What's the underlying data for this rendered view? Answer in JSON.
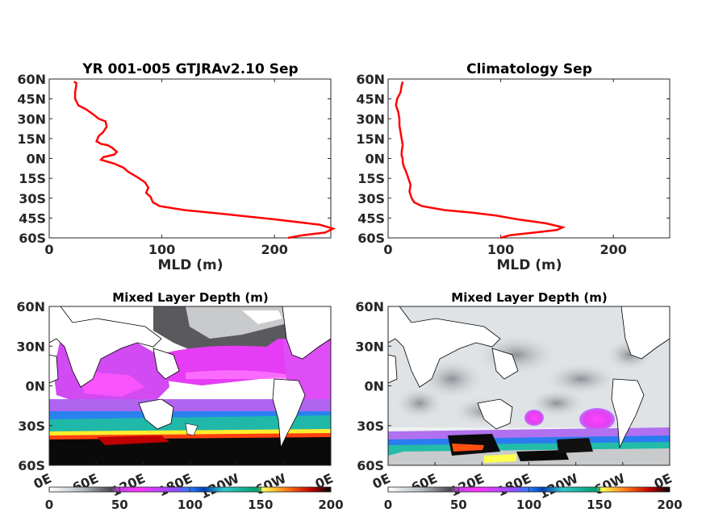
{
  "chart_data": [
    {
      "type": "line",
      "title": "YR 001-005 GTJRAv2.10 Sep",
      "xlabel": "MLD (m)",
      "ylabel": "",
      "xlim": [
        0,
        250
      ],
      "ylim": [
        -60,
        60
      ],
      "xticks": [
        "0",
        "100",
        "200"
      ],
      "xtick_values": [
        0,
        100,
        200
      ],
      "yticks": [
        "60N",
        "45N",
        "30N",
        "15N",
        "0N",
        "15S",
        "30S",
        "45S",
        "60S"
      ],
      "ytick_values": [
        60,
        45,
        30,
        15,
        0,
        -15,
        -30,
        -45,
        -60
      ],
      "series": [
        {
          "color": "#ff0000",
          "x": [
            22,
            24,
            24,
            23,
            23,
            26,
            33,
            38,
            44,
            50,
            51,
            48,
            44,
            42,
            46,
            52,
            56,
            60,
            58,
            48,
            46,
            50,
            58,
            66,
            70,
            78,
            85,
            88,
            86,
            90,
            92,
            98,
            120,
            155,
            200,
            240,
            252,
            245,
            225,
            212
          ],
          "y": [
            58,
            57,
            55,
            50,
            45,
            40,
            37,
            34,
            30,
            28,
            24,
            20,
            17,
            13,
            11,
            10,
            8,
            5,
            3,
            1,
            -1,
            -2,
            -4,
            -7,
            -10,
            -14,
            -18,
            -22,
            -26,
            -29,
            -33,
            -36,
            -39,
            -42,
            -46,
            -50,
            -53,
            -56,
            -58,
            -60
          ]
        }
      ]
    },
    {
      "type": "line",
      "title": "Climatology Sep",
      "xlabel": "MLD (m)",
      "ylabel": "",
      "xlim": [
        0,
        250
      ],
      "ylim": [
        -60,
        60
      ],
      "xticks": [
        "0",
        "100",
        "200"
      ],
      "xtick_values": [
        0,
        100,
        200
      ],
      "yticks": [
        "60N",
        "45N",
        "30N",
        "15N",
        "0N",
        "15S",
        "30S",
        "45S",
        "60S"
      ],
      "ytick_values": [
        60,
        45,
        30,
        15,
        0,
        -15,
        -30,
        -45,
        -60
      ],
      "series": [
        {
          "color": "#ff0000",
          "x": [
            13,
            12,
            11,
            8,
            7,
            9,
            10,
            10,
            11,
            12,
            13,
            12,
            12,
            13,
            13,
            14,
            16,
            18,
            20,
            19,
            21,
            23,
            30,
            50,
            75,
            95,
            115,
            140,
            155,
            150,
            130,
            108,
            100
          ],
          "y": [
            58,
            55,
            50,
            45,
            40,
            35,
            30,
            25,
            20,
            15,
            10,
            5,
            2,
            0,
            -3,
            -6,
            -10,
            -15,
            -20,
            -25,
            -30,
            -33,
            -36,
            -39,
            -41,
            -43,
            -46,
            -49,
            -52,
            -54,
            -56,
            -58,
            -60
          ]
        }
      ]
    },
    {
      "type": "heatmap",
      "title": "Mixed Layer Depth (m)",
      "xlabel": "",
      "ylabel": "",
      "xlim": [
        0,
        360
      ],
      "ylim": [
        -60,
        60
      ],
      "xticks": [
        "0E",
        "60E",
        "120E",
        "180E",
        "120W",
        "60W",
        "0E"
      ],
      "yticks": [
        "60N",
        "30N",
        "0N",
        "30S",
        "60S"
      ],
      "colorbar": {
        "ticks": [
          "0",
          "50",
          "100",
          "150",
          "200"
        ],
        "range": [
          0,
          200
        ]
      }
    },
    {
      "type": "heatmap",
      "title": "Mixed Layer Depth (m)",
      "xlabel": "",
      "ylabel": "",
      "xlim": [
        0,
        360
      ],
      "ylim": [
        -60,
        60
      ],
      "xticks": [
        "0E",
        "60E",
        "120E",
        "180E",
        "120W",
        "60W",
        "0E"
      ],
      "yticks": [
        "60N",
        "30N",
        "0N",
        "30S",
        "60S"
      ],
      "colorbar": {
        "ticks": [
          "0",
          "50",
          "100",
          "150",
          "200"
        ],
        "range": [
          0,
          200
        ]
      }
    }
  ]
}
